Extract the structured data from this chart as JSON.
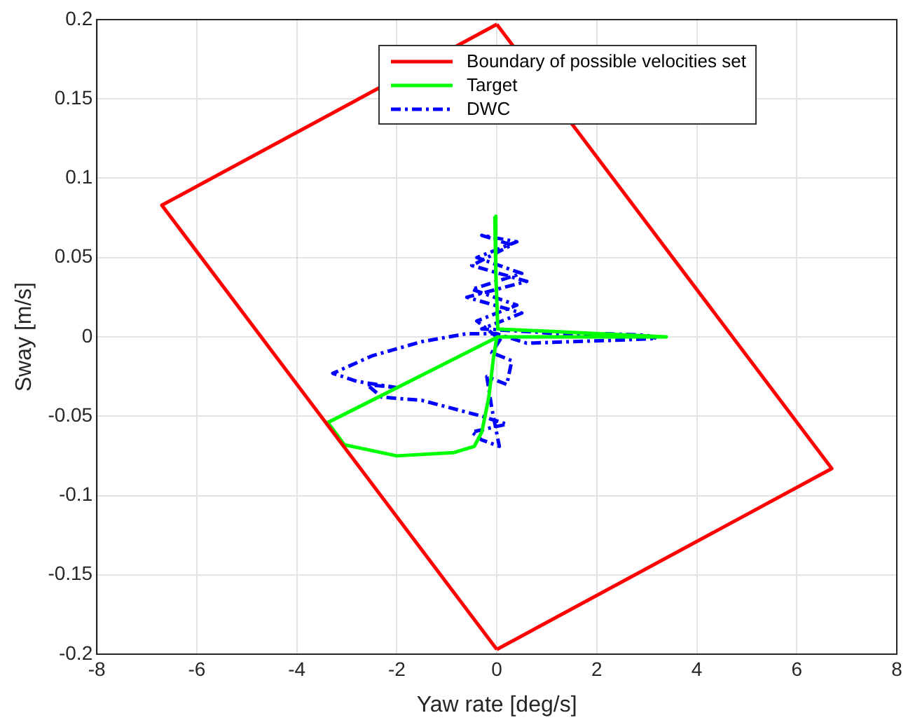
{
  "chart_data": {
    "type": "line",
    "xlabel": "Yaw rate [deg/s]",
    "ylabel": "Sway [m/s]",
    "xlim": [
      -8,
      8
    ],
    "xticks": [
      -8,
      -6,
      -4,
      -2,
      0,
      2,
      4,
      6,
      8
    ],
    "ylim": [
      -0.2,
      0.2
    ],
    "yticks": [
      -0.2,
      -0.15,
      -0.1,
      -0.05,
      0,
      0.05,
      0.1,
      0.15,
      0.2
    ],
    "grid": true,
    "legend": "top",
    "marker": "none",
    "series": [
      {
        "name": "Boundary of possible velocities set",
        "color": "#ff0000",
        "line_style": "solid",
        "x": [
          0,
          -6.7,
          0,
          6.7,
          0
        ],
        "values": [
          0.197,
          0.083,
          -0.197,
          -0.083,
          0.197
        ]
      },
      {
        "name": "Target",
        "color": "#00ff00",
        "line_style": "solid",
        "x": [
          -0.04,
          -0.02,
          0.02,
          3.39,
          0.02,
          -3.38,
          -3.05,
          -2.0,
          -0.87,
          -0.45,
          -0.3,
          -0.16,
          -0.07,
          0
        ],
        "values": [
          0.076,
          0.04,
          0.005,
          0,
          0,
          -0.054,
          -0.068,
          -0.075,
          -0.073,
          -0.069,
          -0.06,
          -0.038,
          -0.014,
          0
        ]
      },
      {
        "name": "DWC",
        "color": "#0000ff",
        "line_style": "dashed",
        "x": [
          0,
          -0.4,
          0.4,
          -0.5,
          0.5,
          -0.4,
          0.4,
          -0.3,
          0.3,
          -0.5,
          0.6,
          -0.6,
          0.5,
          -0.3,
          0.8,
          1.5,
          2.2,
          3.0,
          3.2,
          2.5,
          1.5,
          0.6,
          0,
          -0.6,
          -1.5,
          -2.5,
          -3.28,
          -2.8,
          -2.0,
          -2.6,
          -2.3,
          -1.5,
          -0.9,
          -0.3,
          0.2,
          -0.5,
          -0.3,
          0.05,
          -0.1,
          -0.2,
          0.2,
          0.3,
          -0.1,
          0.1
        ],
        "values": [
          0,
          0.01,
          0.02,
          0.03,
          0.04,
          0.05,
          0.06,
          0.064,
          0.058,
          0.045,
          0.035,
          0.025,
          0.015,
          0.005,
          0.003,
          0.001,
          0.002,
          0.001,
          -0.001,
          -0.002,
          -0.003,
          -0.004,
          0.002,
          0.002,
          -0.003,
          -0.012,
          -0.023,
          -0.028,
          -0.032,
          -0.03,
          -0.038,
          -0.04,
          -0.045,
          -0.05,
          -0.055,
          -0.06,
          -0.065,
          -0.069,
          -0.045,
          -0.025,
          -0.03,
          -0.015,
          -0.01,
          0
        ]
      }
    ]
  }
}
